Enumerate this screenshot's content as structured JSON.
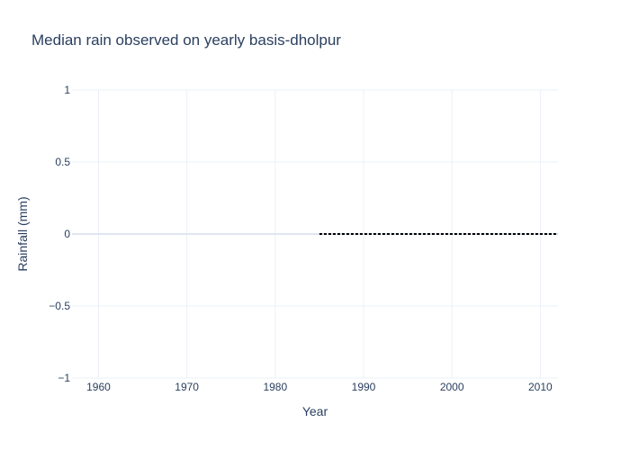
{
  "chart_data": {
    "type": "line",
    "title": "Median rain observed on yearly basis-dholpur",
    "xlabel": "Year",
    "ylabel": "Rainfall (mm)",
    "xlim": [
      1957,
      2012
    ],
    "ylim": [
      -1,
      1
    ],
    "x_ticks": [
      1960,
      1970,
      1980,
      1990,
      2000,
      2010
    ],
    "y_ticks": [
      {
        "value": 1,
        "label": "1"
      },
      {
        "value": 0.5,
        "label": "0.5"
      },
      {
        "value": 0,
        "label": "0"
      },
      {
        "value": -0.5,
        "label": "−0.5"
      },
      {
        "value": -1,
        "label": "−1"
      }
    ],
    "grid": true,
    "series": [
      {
        "style": "dotted",
        "color": "#000000",
        "x": [
          1985,
          2012
        ],
        "y": [
          0,
          0
        ]
      }
    ]
  }
}
